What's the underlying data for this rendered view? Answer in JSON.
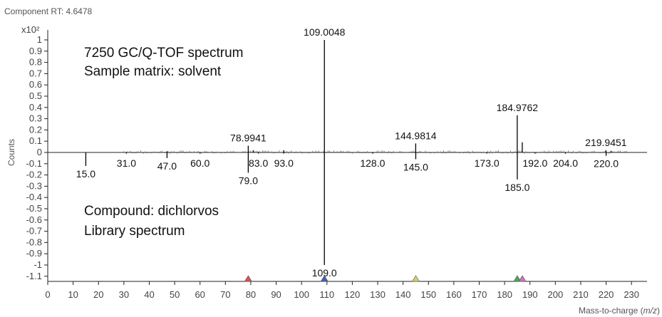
{
  "header": {
    "rt_label": "Component RT: 4.6478"
  },
  "colors": {
    "line": "#000000",
    "axis": "#222222",
    "marker_red": "#e74c4c",
    "marker_blue": "#3f5fbf",
    "marker_yellow": "#d8d066",
    "marker_green": "#3fae5a",
    "marker_pink": "#d66fc2"
  },
  "chart_data": {
    "type": "bar",
    "orientation": "mirror",
    "x_axis_label_prefix": "Mass-to-charge (",
    "x_axis_label_italic": "m/z",
    "x_axis_label_suffix": ")",
    "y_axis_label": "Counts",
    "y_scale_label": "x10²",
    "xlim": [
      0,
      235
    ],
    "ylim": [
      -1.15,
      1.0
    ],
    "x_ticks": [
      0,
      10,
      20,
      30,
      40,
      50,
      60,
      70,
      80,
      90,
      100,
      110,
      120,
      130,
      140,
      150,
      160,
      170,
      180,
      190,
      200,
      210,
      220,
      230
    ],
    "y_ticks": [
      1,
      0.9,
      0.8,
      0.7,
      0.6,
      0.5,
      0.4,
      0.3,
      0.2,
      0.1,
      0,
      -0.1,
      -0.2,
      -0.3,
      -0.4,
      -0.5,
      -0.6,
      -0.7,
      -0.8,
      -0.9,
      -1,
      -1.1
    ],
    "y_tick_labels": [
      "1",
      "0.9",
      "0.8",
      "0.7",
      "0.6",
      "0.5",
      "0.4",
      "0.3",
      "0.2",
      "0.1",
      "0",
      "-0.1",
      "-0.2",
      "-0.3",
      "-0.4",
      "-0.5",
      "-0.6",
      "-0.7",
      "-0.8",
      "-0.9",
      "-1",
      "-1.1"
    ],
    "top_annotation_1": "7250 GC/Q-TOF spectrum",
    "top_annotation_2": "Sample matrix: solvent",
    "bottom_annotation_1": "Compound: dichlorvos",
    "bottom_annotation_2": "Library spectrum",
    "series": [
      {
        "name": "7250 GC/Q-TOF spectrum",
        "peaks": [
          {
            "x": 109.0048,
            "y": 1.0,
            "label": "109.0048"
          },
          {
            "x": 78.9941,
            "y": 0.06,
            "label": "78.9941"
          },
          {
            "x": 144.9814,
            "y": 0.08,
            "label": "144.9814"
          },
          {
            "x": 184.9762,
            "y": 0.33,
            "label": "184.9762"
          },
          {
            "x": 186.97,
            "y": 0.09,
            "label": ""
          },
          {
            "x": 219.9451,
            "y": 0.02,
            "label": "219.9451"
          },
          {
            "x": 221.94,
            "y": 0.015,
            "label": ""
          },
          {
            "x": 80.99,
            "y": 0.02,
            "label": ""
          },
          {
            "x": 93.0,
            "y": 0.02,
            "label": ""
          },
          {
            "x": 47.0,
            "y": 0.01,
            "label": ""
          }
        ]
      },
      {
        "name": "Library spectrum",
        "peaks": [
          {
            "x": 109.0,
            "y": -1.0,
            "label": "109.0"
          },
          {
            "x": 79.0,
            "y": -0.18,
            "label": "79.0"
          },
          {
            "x": 185.0,
            "y": -0.24,
            "label": "185.0"
          },
          {
            "x": 145.0,
            "y": -0.06,
            "label": "145.0"
          },
          {
            "x": 15.0,
            "y": -0.12,
            "label": "15.0"
          },
          {
            "x": 47.0,
            "y": -0.05,
            "label": "47.0"
          },
          {
            "x": 220.0,
            "y": -0.03,
            "label": "220.0"
          },
          {
            "x": 31.0,
            "y": -0.01,
            "label": "31.0"
          },
          {
            "x": 60.0,
            "y": -0.01,
            "label": "60.0"
          },
          {
            "x": 83.0,
            "y": -0.01,
            "label": "83.0"
          },
          {
            "x": 93.0,
            "y": -0.01,
            "label": "93.0"
          },
          {
            "x": 128.0,
            "y": -0.01,
            "label": "128.0"
          },
          {
            "x": 173.0,
            "y": -0.01,
            "label": "173.0"
          },
          {
            "x": 192.0,
            "y": -0.01,
            "label": "192.0"
          },
          {
            "x": 204.0,
            "y": -0.01,
            "label": "204.0"
          }
        ]
      }
    ],
    "markers": [
      {
        "x": 79.0,
        "color": "#e74c4c"
      },
      {
        "x": 109.0,
        "color": "#3f5fbf"
      },
      {
        "x": 145.0,
        "color": "#d8d066"
      },
      {
        "x": 185.0,
        "color": "#3fae5a"
      },
      {
        "x": 187.0,
        "color": "#d66fc2"
      }
    ]
  }
}
